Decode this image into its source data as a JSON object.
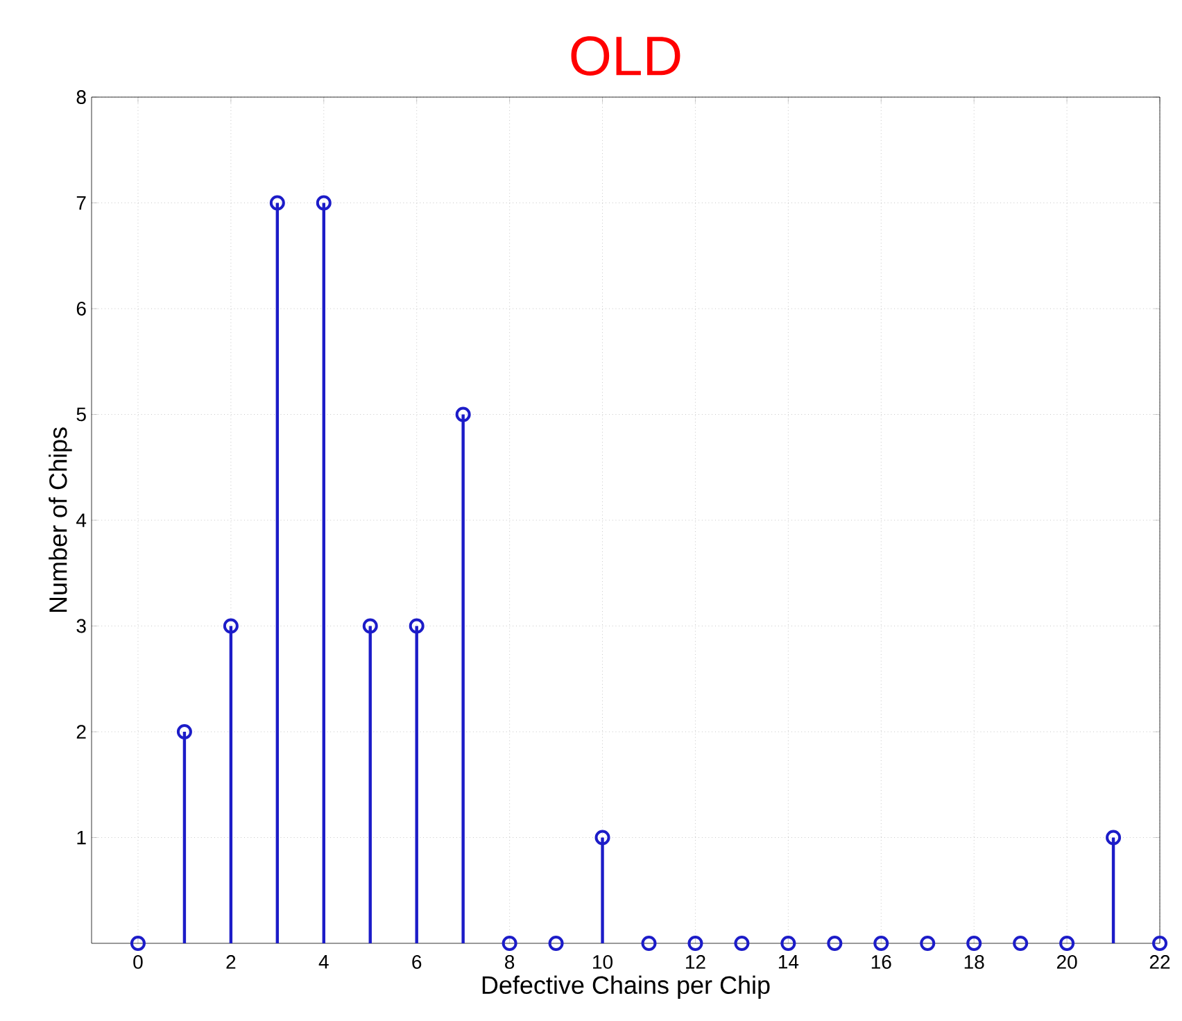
{
  "chart_data": {
    "type": "lollipop",
    "title": "OLD",
    "xlabel": "Defective Chains per Chip",
    "ylabel": "Number of Chips",
    "x": [
      0,
      1,
      2,
      3,
      4,
      5,
      6,
      7,
      8,
      9,
      10,
      11,
      12,
      13,
      14,
      15,
      16,
      17,
      18,
      19,
      20,
      21,
      22
    ],
    "values": [
      0,
      2,
      3,
      7,
      7,
      3,
      3,
      5,
      0,
      0,
      1,
      0,
      0,
      0,
      0,
      0,
      0,
      0,
      0,
      0,
      0,
      1,
      0
    ],
    "color": "#1c1cc8",
    "marker": "circle",
    "grid": true,
    "xlim": [
      -1,
      22
    ],
    "ylim": [
      0,
      8
    ],
    "xticks": [
      0,
      2,
      4,
      6,
      8,
      10,
      12,
      14,
      16,
      18,
      20,
      22
    ],
    "yticks": [
      1,
      2,
      3,
      4,
      5,
      6,
      7,
      8
    ]
  }
}
